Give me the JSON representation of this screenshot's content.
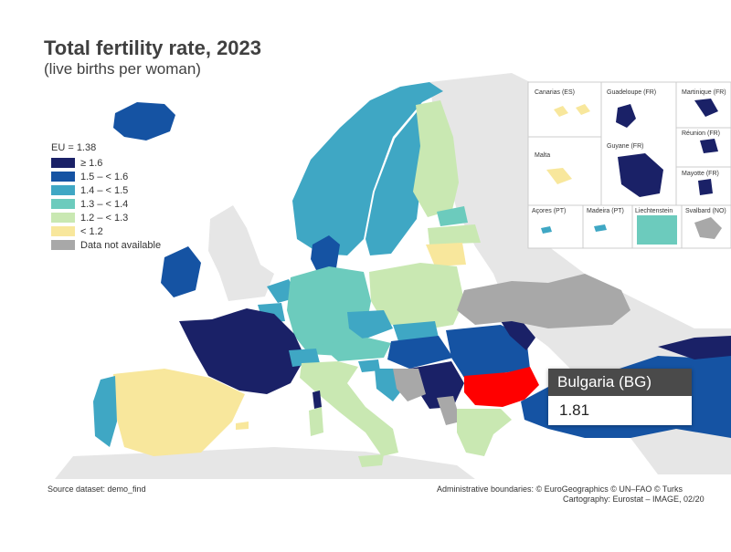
{
  "title": "Total fertility rate, 2023",
  "subtitle": "(live births per woman)",
  "legend": {
    "title": "EU = 1.38",
    "items": [
      {
        "label": "≥ 1.6",
        "color": "#1a2167"
      },
      {
        "label": "1.5 – < 1.6",
        "color": "#1553a3"
      },
      {
        "label": "1.4 – < 1.5",
        "color": "#3fa7c4"
      },
      {
        "label": "1.3 – < 1.4",
        "color": "#6ccbbd"
      },
      {
        "label": "1.2 – < 1.3",
        "color": "#c9e8b2"
      },
      {
        "label": "< 1.2",
        "color": "#f8e79c"
      },
      {
        "label": "Data not available",
        "color": "#a8a8a8"
      }
    ]
  },
  "tooltip": {
    "country": "Bulgaria (BG)",
    "value": "1.81",
    "highlight_color": "#ff0000"
  },
  "insets": {
    "canarias": "Canarias (ES)",
    "guadeloupe": "Guadeloupe (FR)",
    "martinique": "Martinique (FR)",
    "reunion": "Réunion (FR)",
    "malta": "Malta",
    "guyane": "Guyane (FR)",
    "mayotte": "Mayotte (FR)",
    "acores": "Açores (PT)",
    "madeira": "Madeira (PT)",
    "liechtenstein": "Liechtenstein",
    "svalbard": "Svalbard (NO)"
  },
  "source": "Source dataset: demo_find",
  "boundaries": "Administrative boundaries: © EuroGeographics © UN–FAO © Turks",
  "cartography": "Cartography: Eurostat – IMAGE, 02/20"
}
